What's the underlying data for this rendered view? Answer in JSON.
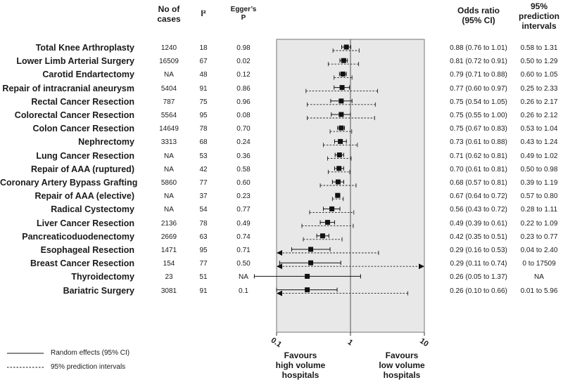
{
  "headers": {
    "cases": [
      "No of",
      "cases"
    ],
    "i2": "I²",
    "egger": [
      "Egger’s",
      "P"
    ],
    "or": [
      "Odds ratio",
      "(95% CI)"
    ],
    "pi": [
      "95%",
      "prediction",
      "intervals"
    ]
  },
  "rows": [
    {
      "procedure": "Total Knee Arthroplasty",
      "cases": "1240",
      "i2": "18",
      "egger": "0.98",
      "or_text": "0.88 (0.76 to 1.01)",
      "pi_text": "0.58 to 1.31"
    },
    {
      "procedure": "Lower Limb Arterial Surgery",
      "cases": "16509",
      "i2": "67",
      "egger": "0.02",
      "or_text": "0.81 (0.72 to 0.91)",
      "pi_text": "0.50 to 1.29"
    },
    {
      "procedure": "Carotid Endartectomy",
      "cases": "NA",
      "i2": "48",
      "egger": "0.12",
      "or_text": "0.79 (0.71 to 0.88)",
      "pi_text": "0.60 to 1.05"
    },
    {
      "procedure": "Repair of intracranial aneurysm",
      "cases": "5404",
      "i2": "91",
      "egger": "0.86",
      "or_text": "0.77 (0.60 to 0.97)",
      "pi_text": "0.25 to 2.33"
    },
    {
      "procedure": "Rectal Cancer Resection",
      "cases": "787",
      "i2": "75",
      "egger": "0.96",
      "or_text": "0.75 (0.54 to 1.05)",
      "pi_text": "0.26 to 2.17"
    },
    {
      "procedure": "Colorectal Cancer Resection",
      "cases": "5564",
      "i2": "95",
      "egger": "0.08",
      "or_text": "0.75 (0.55 to 1.00)",
      "pi_text": "0.26 to 2.12"
    },
    {
      "procedure": "Colon Cancer Resection",
      "cases": "14649",
      "i2": "78",
      "egger": "0.70",
      "or_text": "0.75 (0.67 to 0.83)",
      "pi_text": "0.53 to 1.04"
    },
    {
      "procedure": "Nephrectomy",
      "cases": "3313",
      "i2": "68",
      "egger": "0.24",
      "or_text": "0.73 (0.61 to 0.88)",
      "pi_text": "0.43 to 1.24"
    },
    {
      "procedure": "Lung Cancer Resection",
      "cases": "NA",
      "i2": "53",
      "egger": "0.36",
      "or_text": "0.71 (0.62 to 0.81)",
      "pi_text": "0.49 to 1.02"
    },
    {
      "procedure": "Repair of AAA (ruptured)",
      "cases": "NA",
      "i2": "42",
      "egger": "0.58",
      "or_text": "0.70 (0.61 to 0.81)",
      "pi_text": "0.50 to 0.98"
    },
    {
      "procedure": "Coronary Artery Bypass Grafting",
      "cases": "5860",
      "i2": "77",
      "egger": "0.60",
      "or_text": "0.68 (0.57 to 0.81)",
      "pi_text": "0.39 to 1.19"
    },
    {
      "procedure": "Repair of AAA (elective)",
      "cases": "NA",
      "i2": "37",
      "egger": "0.23",
      "or_text": "0.67 (0.64 to 0.72)",
      "pi_text": "0.57 to 0.80"
    },
    {
      "procedure": "Radical Cystectomy",
      "cases": "NA",
      "i2": "54",
      "egger": "0.77",
      "or_text": "0.56 (0.43 to 0.72)",
      "pi_text": "0.28 to 1.11"
    },
    {
      "procedure": "Liver Cancer Resection",
      "cases": "2136",
      "i2": "78",
      "egger": "0.49",
      "or_text": "0.49 (0.39 to 0.61)",
      "pi_text": "0.22 to 1.09"
    },
    {
      "procedure": "Pancreaticoduodenectomy",
      "cases": "2669",
      "i2": "63",
      "egger": "0.74",
      "or_text": "0.42 (0.35 to 0.51)",
      "pi_text": "0.23 to 0.77"
    },
    {
      "procedure": "Esophageal Resection",
      "cases": "1471",
      "i2": "95",
      "egger": "0.71",
      "or_text": "0.29 (0.16 to 0.53)",
      "pi_text": "0.04 to 2.40"
    },
    {
      "procedure": "Breast Cancer Resection",
      "cases": "154",
      "i2": "77",
      "egger": "0.50",
      "or_text": "0.29 (0.11 to 0.74)",
      "pi_text": "0 to 17509"
    },
    {
      "procedure": "Thyroidectomy",
      "cases": "23",
      "i2": "51",
      "egger": "NA",
      "or_text": "0.26 (0.05 to 1.37)",
      "pi_text": "NA"
    },
    {
      "procedure": "Bariatric Surgery",
      "cases": "3081",
      "i2": "91",
      "egger": "0.1",
      "or_text": "0.26 (0.10 to 0.66)",
      "pi_text": "0.01 to 5.96"
    }
  ],
  "chart_data": {
    "type": "scatter",
    "subtype": "forest_plot",
    "x_scale": "log",
    "xlim": [
      0.1,
      10
    ],
    "xticks": [
      "0.1",
      "1",
      "10"
    ],
    "reference_line": 1,
    "categories": [
      "Total Knee Arthroplasty",
      "Lower Limb Arterial Surgery",
      "Carotid Endartectomy",
      "Repair of intracranial aneurysm",
      "Rectal Cancer Resection",
      "Colorectal Cancer Resection",
      "Colon Cancer Resection",
      "Nephrectomy",
      "Lung Cancer Resection",
      "Repair of AAA (ruptured)",
      "Coronary Artery Bypass Grafting",
      "Repair of AAA (elective)",
      "Radical Cystectomy",
      "Liver Cancer Resection",
      "Pancreaticoduodenectomy",
      "Esophageal Resection",
      "Breast Cancer Resection",
      "Thyroidectomy",
      "Bariatric Surgery"
    ],
    "or": [
      0.88,
      0.81,
      0.79,
      0.77,
      0.75,
      0.75,
      0.75,
      0.73,
      0.71,
      0.7,
      0.68,
      0.67,
      0.56,
      0.49,
      0.42,
      0.29,
      0.29,
      0.26,
      0.26
    ],
    "ci_low": [
      0.76,
      0.72,
      0.71,
      0.6,
      0.54,
      0.55,
      0.67,
      0.61,
      0.62,
      0.61,
      0.57,
      0.64,
      0.43,
      0.39,
      0.35,
      0.16,
      0.11,
      0.05,
      0.1
    ],
    "ci_high": [
      1.01,
      0.91,
      0.88,
      0.97,
      1.05,
      1.0,
      0.83,
      0.88,
      0.81,
      0.81,
      0.81,
      0.72,
      0.72,
      0.61,
      0.51,
      0.53,
      0.74,
      1.37,
      0.66
    ],
    "pi_low": [
      0.58,
      0.5,
      0.6,
      0.25,
      0.26,
      0.26,
      0.53,
      0.43,
      0.49,
      0.5,
      0.39,
      0.57,
      0.28,
      0.22,
      0.23,
      0.04,
      0.0,
      null,
      0.01
    ],
    "pi_high": [
      1.31,
      1.29,
      1.05,
      2.33,
      2.17,
      2.12,
      1.04,
      1.24,
      1.02,
      0.98,
      1.19,
      0.8,
      1.11,
      1.09,
      0.77,
      2.4,
      17509,
      null,
      5.96
    ],
    "favours_left": [
      "Favours",
      "high volume",
      "hospitals"
    ],
    "favours_right": [
      "Favours",
      "low volume",
      "hospitals"
    ],
    "legend": {
      "solid": "Random effects (95% CI)",
      "dashed": "95% prediction intervals"
    }
  }
}
